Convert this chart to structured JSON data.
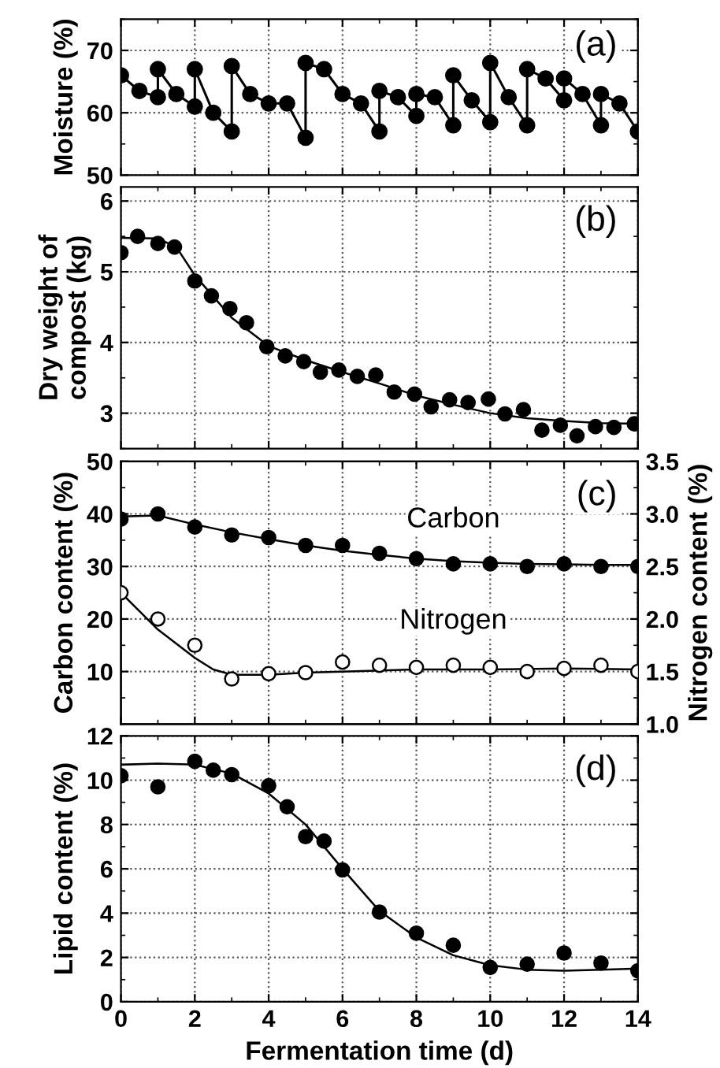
{
  "chart_data": [
    {
      "type": "line",
      "ylabel": "Moisture (%)",
      "annotations": [
        "(a)"
      ],
      "xlim": [
        0,
        14
      ],
      "xticks": [
        0,
        2,
        4,
        6,
        8,
        10,
        12,
        14
      ],
      "ylim": [
        50,
        75
      ],
      "yticks": [
        50,
        60,
        70
      ],
      "grid": true,
      "tick_labels": "y",
      "marker": "circle",
      "series": [
        {
          "color": "#000000",
          "x": [
            0,
            0.5,
            1,
            1,
            1.5,
            2,
            2,
            2.5,
            3,
            3,
            3.5,
            4,
            4.5,
            5,
            5,
            5.5,
            6,
            6.5,
            7,
            7,
            7.5,
            8,
            8,
            8.5,
            9,
            9,
            9.5,
            10,
            10,
            10.5,
            11,
            11,
            11.5,
            12,
            12,
            12.5,
            13,
            13,
            13.5,
            14
          ],
          "values": [
            66,
            63.5,
            62.5,
            67,
            63,
            61,
            67,
            60,
            57,
            67.5,
            63,
            61.5,
            61.5,
            56,
            68,
            67,
            63,
            61.5,
            57,
            63.5,
            62.5,
            59.5,
            63,
            62.5,
            58,
            66,
            62,
            58.5,
            68,
            62.5,
            58,
            67,
            65.5,
            62,
            65.5,
            63,
            58,
            63,
            61.5,
            57
          ]
        }
      ]
    },
    {
      "type": "scatter",
      "ylabel": "Dry weight of\ncompost (kg)",
      "annotations": [
        "(b)"
      ],
      "xlim": [
        0,
        14
      ],
      "xticks": [
        0,
        2,
        4,
        6,
        8,
        10,
        12,
        14
      ],
      "ylim": [
        2.5,
        6.2
      ],
      "yticks": [
        3,
        4,
        5,
        6
      ],
      "grid": true,
      "tick_labels": "y",
      "marker": "circle",
      "series": [
        {
          "color": "#000000",
          "x": [
            0,
            0.45,
            1,
            1.45,
            2,
            2.45,
            2.95,
            3.4,
            3.95,
            4.45,
            4.95,
            5.4,
            5.9,
            6.4,
            6.9,
            7.4,
            7.95,
            8.4,
            8.9,
            9.4,
            9.95,
            10.4,
            10.9,
            11.4,
            11.9,
            12.35,
            12.85,
            13.35,
            13.9
          ],
          "values": [
            5.27,
            5.5,
            5.4,
            5.35,
            4.87,
            4.66,
            4.48,
            4.28,
            3.94,
            3.81,
            3.73,
            3.58,
            3.61,
            3.52,
            3.54,
            3.3,
            3.27,
            3.09,
            3.19,
            3.15,
            3.2,
            2.99,
            3.05,
            2.76,
            2.83,
            2.68,
            2.81,
            2.8,
            2.85
          ]
        },
        {
          "type": "line",
          "marker": "none",
          "color": "#000000",
          "x": [
            0,
            1,
            1.5,
            2,
            3,
            4,
            5,
            6,
            7,
            8,
            9,
            10,
            11,
            12,
            13,
            14
          ],
          "values": [
            5.48,
            5.47,
            5.35,
            4.95,
            4.35,
            3.95,
            3.75,
            3.58,
            3.42,
            3.25,
            3.12,
            3.0,
            2.93,
            2.89,
            2.86,
            2.85
          ]
        }
      ]
    },
    {
      "type": "scatter",
      "ylabel": "Carbon content (%)",
      "y2label": "Nitrogen content (%)",
      "annotations": [
        "(c)"
      ],
      "xlim": [
        0,
        14
      ],
      "xticks": [
        0,
        2,
        4,
        6,
        8,
        10,
        12,
        14
      ],
      "ylim": [
        0,
        50
      ],
      "yticks": [
        10,
        20,
        30,
        40,
        50
      ],
      "y2lim": [
        1.0,
        3.5
      ],
      "y2ticks": [
        {
          "value": 1.0,
          "label": "1.0"
        },
        {
          "value": 1.5,
          "label": "1.5"
        },
        {
          "value": 2.0,
          "label": "2.0"
        },
        {
          "value": 2.5,
          "label": "2.5"
        },
        {
          "value": 3.0,
          "label": "3.0"
        },
        {
          "value": 3.5,
          "label": "3.5"
        }
      ],
      "grid": true,
      "tick_labels": "y",
      "marker": "circle",
      "series": [
        {
          "name": "Carbon",
          "color": "#000000",
          "x": [
            0,
            1,
            2,
            3,
            4,
            5,
            6,
            7,
            8,
            9,
            10,
            11,
            12,
            13,
            14
          ],
          "values": [
            39,
            40,
            37.5,
            36,
            35.5,
            34,
            34,
            32.5,
            31.5,
            30.5,
            30.5,
            30,
            30.5,
            30,
            30
          ]
        },
        {
          "type": "line",
          "marker": "none",
          "color": "#000000",
          "x": [
            0,
            1,
            2,
            3,
            4,
            5,
            6,
            7,
            8,
            9,
            10,
            11,
            12,
            13,
            14
          ],
          "values": [
            39.5,
            39.7,
            38,
            36.5,
            35.2,
            34,
            33,
            32.2,
            31.5,
            31,
            30.7,
            30.5,
            30.4,
            30.3,
            30.3
          ]
        },
        {
          "name": "Nitrogen",
          "axis": "y2",
          "color": "#ffffff",
          "x": [
            0,
            1,
            2,
            3,
            4,
            5,
            6,
            7,
            8,
            9,
            10,
            11,
            12,
            13,
            14
          ],
          "values": [
            2.25,
            2.0,
            1.75,
            1.43,
            1.48,
            1.49,
            1.59,
            1.56,
            1.54,
            1.56,
            1.54,
            1.5,
            1.53,
            1.56,
            1.5
          ]
        },
        {
          "type": "line",
          "marker": "none",
          "axis": "y2",
          "color": "#000000",
          "x": [
            0,
            1,
            2,
            2.5,
            3,
            4,
            5,
            6,
            8,
            10,
            12,
            14
          ],
          "values": [
            2.25,
            1.9,
            1.63,
            1.52,
            1.47,
            1.47,
            1.49,
            1.5,
            1.52,
            1.52,
            1.53,
            1.52
          ]
        }
      ]
    },
    {
      "type": "scatter",
      "ylabel": "Lipid content (%)",
      "xlabel": "Fermentation time (d)",
      "annotations": [
        "(d)"
      ],
      "xlim": [
        0,
        14
      ],
      "xticks": [
        0,
        2,
        4,
        6,
        8,
        10,
        12,
        14
      ],
      "ylim": [
        0,
        12
      ],
      "yticks": [
        0,
        2,
        4,
        6,
        8,
        10,
        12
      ],
      "grid": true,
      "marker": "circle",
      "series": [
        {
          "color": "#000000",
          "x": [
            0,
            1,
            2,
            2.5,
            3,
            4,
            4.5,
            5,
            5.5,
            6,
            7,
            8,
            9,
            10,
            11,
            12,
            13,
            14
          ],
          "values": [
            10.2,
            9.7,
            10.85,
            10.45,
            10.25,
            9.75,
            8.8,
            7.45,
            7.25,
            5.95,
            4.05,
            3.1,
            2.55,
            1.55,
            1.7,
            2.2,
            1.75,
            1.4
          ]
        },
        {
          "type": "line",
          "marker": "none",
          "color": "#000000",
          "x": [
            0,
            1,
            2,
            3,
            4,
            5,
            6,
            7,
            8,
            9,
            10,
            11,
            12,
            13,
            14
          ],
          "values": [
            10.7,
            10.75,
            10.7,
            10.3,
            9.4,
            8.0,
            6.0,
            4.1,
            2.9,
            2.1,
            1.65,
            1.45,
            1.4,
            1.45,
            1.5
          ]
        }
      ]
    }
  ]
}
